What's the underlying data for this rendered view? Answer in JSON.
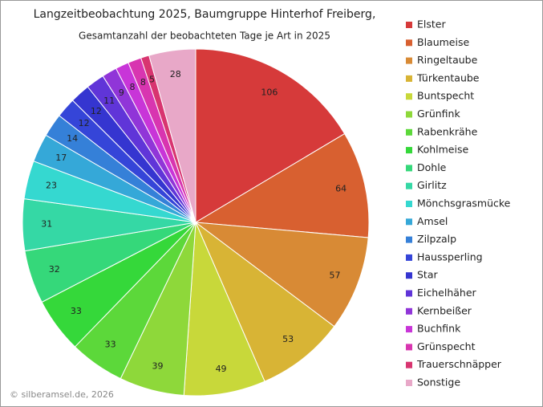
{
  "chart_data": {
    "type": "pie",
    "title": "Langzeitbeobachtung  2025, Baumgruppe  Hinterhof Freiberg,",
    "subtitle": "Gesamtanzahl der beobachteten Tage je Art in 2025",
    "footer": "© silberamsel.de, 2026",
    "legend": "right",
    "categories": [
      "Elster",
      "Blaumeise",
      "Ringeltaube",
      "Türkentaube",
      "Buntspecht",
      "Grünfink",
      "Rabenkrähe",
      "Kohlmeise",
      "Dohle",
      "Girlitz",
      "Mönchsgrasmücke",
      "Amsel",
      "Zilpzalp",
      "Haussperling",
      "Star",
      "Eichelhäher",
      "Kernbeißer",
      "Buchfink",
      "Grünspecht",
      "Trauerschnäpper",
      "Sonstige"
    ],
    "values": [
      106,
      64,
      57,
      53,
      49,
      39,
      33,
      33,
      32,
      31,
      23,
      17,
      14,
      12,
      12,
      11,
      9,
      8,
      8,
      5,
      28
    ],
    "colors": [
      "#d63a3a",
      "#d86030",
      "#d88a35",
      "#d8b435",
      "#c8d83a",
      "#8ed83a",
      "#5cd83a",
      "#35d83a",
      "#35d87a",
      "#35d8a5",
      "#35d8d0",
      "#35a8d8",
      "#3580d8",
      "#3545d8",
      "#3535d0",
      "#6035d8",
      "#9035d8",
      "#c835d8",
      "#d835b0",
      "#d83570",
      "#e8a8c8"
    ]
  }
}
